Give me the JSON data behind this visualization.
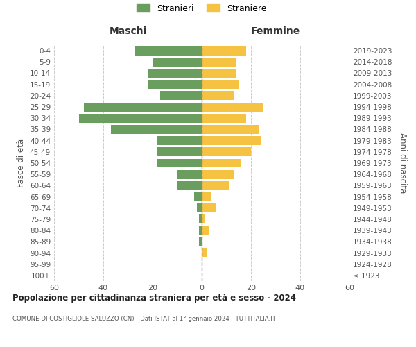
{
  "age_groups": [
    "100+",
    "95-99",
    "90-94",
    "85-89",
    "80-84",
    "75-79",
    "70-74",
    "65-69",
    "60-64",
    "55-59",
    "50-54",
    "45-49",
    "40-44",
    "35-39",
    "30-34",
    "25-29",
    "20-24",
    "15-19",
    "10-14",
    "5-9",
    "0-4"
  ],
  "birth_years": [
    "≤ 1923",
    "1924-1928",
    "1929-1933",
    "1934-1938",
    "1939-1943",
    "1944-1948",
    "1949-1953",
    "1954-1958",
    "1959-1963",
    "1964-1968",
    "1969-1973",
    "1974-1978",
    "1979-1983",
    "1984-1988",
    "1989-1993",
    "1994-1998",
    "1999-2003",
    "2004-2008",
    "2009-2013",
    "2014-2018",
    "2019-2023"
  ],
  "males": [
    0,
    0,
    0,
    1,
    1,
    1,
    2,
    3,
    10,
    10,
    18,
    18,
    18,
    37,
    50,
    48,
    17,
    22,
    22,
    20,
    27
  ],
  "females": [
    0,
    0,
    2,
    0,
    3,
    1,
    6,
    4,
    11,
    13,
    16,
    20,
    24,
    23,
    18,
    25,
    13,
    15,
    14,
    14,
    18
  ],
  "male_color": "#6a9e5f",
  "female_color": "#f5c242",
  "background_color": "#ffffff",
  "grid_color": "#cccccc",
  "title": "Popolazione per cittadinanza straniera per età e sesso - 2024",
  "subtitle": "COMUNE DI COSTIGLIOLE SALUZZO (CN) - Dati ISTAT al 1° gennaio 2024 - TUTTITALIA.IT",
  "xlabel_left": "Maschi",
  "xlabel_right": "Femmine",
  "ylabel_left": "Fasce di età",
  "ylabel_right": "Anni di nascita",
  "legend_male": "Stranieri",
  "legend_female": "Straniere",
  "xlim": 60,
  "bar_height": 0.8,
  "figwidth": 6.0,
  "figheight": 5.0,
  "dpi": 100
}
